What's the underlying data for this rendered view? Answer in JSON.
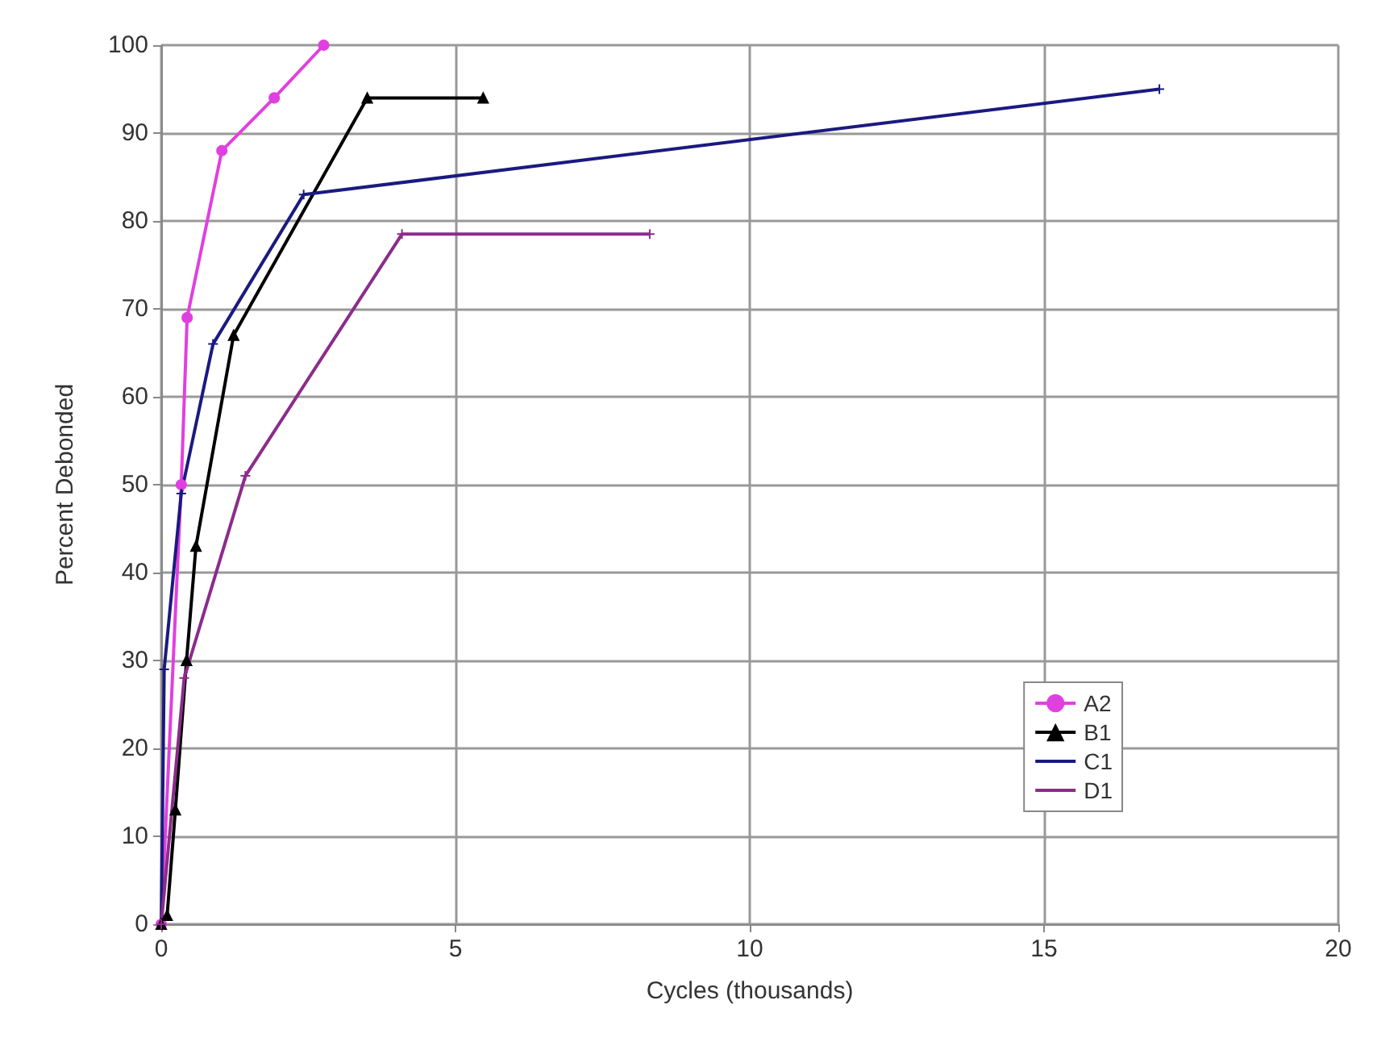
{
  "chart_data": {
    "type": "line",
    "xlabel": "Cycles (thousands)",
    "ylabel": "Percent Debonded",
    "xlim": [
      0,
      20
    ],
    "xticks": [
      0,
      5,
      10,
      15,
      20
    ],
    "ylim": [
      0,
      100
    ],
    "yticks": [
      0,
      10,
      20,
      30,
      40,
      50,
      60,
      70,
      80,
      90,
      100
    ],
    "grid": true,
    "legend": "bottom right",
    "series": [
      {
        "name": "A2",
        "color": "#e040e0",
        "marker": "circle",
        "x": [
          0,
          0.34,
          0.44,
          1.03,
          1.92,
          2.76
        ],
        "values": [
          0,
          50,
          69,
          88,
          94,
          100
        ]
      },
      {
        "name": "B1",
        "color": "#000000",
        "marker": "triangle",
        "x": [
          0,
          0.1,
          0.24,
          0.43,
          0.59,
          1.23,
          3.5,
          5.47
        ],
        "values": [
          0,
          1,
          13,
          30,
          43,
          67,
          94,
          94
        ]
      },
      {
        "name": "C1",
        "color": "#1a1a80",
        "marker": "cross",
        "x": [
          0,
          0.05,
          0.34,
          0.88,
          2.42,
          16.96
        ],
        "values": [
          0,
          29,
          49,
          66,
          83,
          95
        ]
      },
      {
        "name": "D1",
        "color": "#8b2c8b",
        "marker": "cross",
        "x": [
          0,
          0.39,
          1.43,
          4.09,
          8.3
        ],
        "values": [
          0,
          28,
          51,
          78.5,
          78.5
        ]
      }
    ]
  }
}
